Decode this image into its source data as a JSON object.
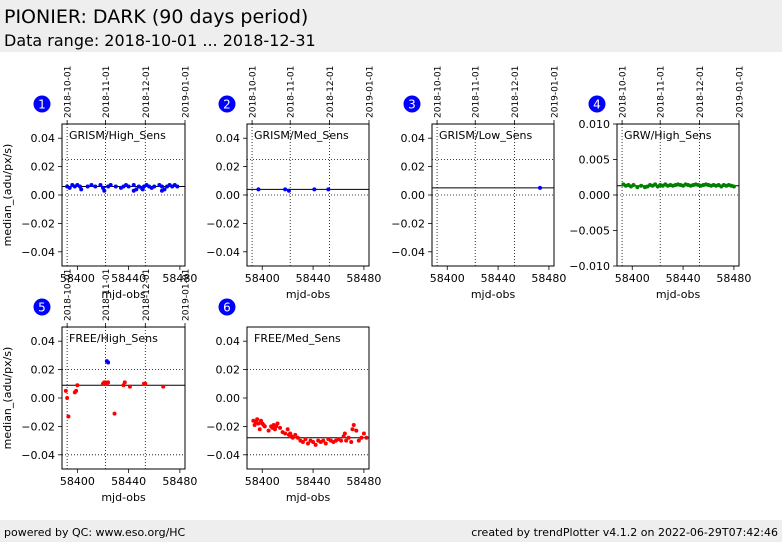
{
  "header": {
    "title": "PIONIER: DARK (90 days period)",
    "subtitle": "Data range: 2018-10-01 ... 2018-12-31"
  },
  "footer": {
    "left": "powered by QC: www.eso.org/HC",
    "right": "created by trendPlotter v4.1.2 on 2022-06-29T07:42:46"
  },
  "colors": {
    "blue": "#0000ff",
    "green": "#007f00",
    "red": "#ff0000",
    "badge": "#0000ff"
  },
  "chart_data": [
    {
      "type": "scatter",
      "badge": "1",
      "label": "GRISM/High_Sens",
      "xlabel": "mjd-obs",
      "ylabel": "median_(adu/px/s)",
      "xlim": [
        58388,
        58484
      ],
      "ylim": [
        -0.05,
        0.05
      ],
      "xticks": [
        58400,
        58440,
        58480
      ],
      "xtick_labels": [
        "58400",
        "58440",
        "58480"
      ],
      "yticks": [
        -0.04,
        -0.02,
        0.0,
        0.02,
        0.04
      ],
      "ytick_labels": [
        "−0.04",
        "−0.02",
        "0.00",
        "0.02",
        "0.04"
      ],
      "date_ticks": [
        58392,
        58422,
        58453,
        58484
      ],
      "date_labels": [
        "2018-10-01",
        "2018-11-01",
        "2018-12-01",
        "2019-01-01"
      ],
      "hlines": [
        {
          "y": 0.006,
          "style": "solid"
        },
        {
          "y": 0.025,
          "style": "dotted"
        },
        {
          "y": 0.0,
          "style": "dotted"
        }
      ],
      "series": [
        {
          "color": "blue",
          "x": [
            58392,
            58394,
            58396,
            58398,
            58400,
            58402,
            58408,
            58411,
            58414,
            58418,
            58420,
            58421,
            58424,
            58426,
            58430,
            58434,
            58436,
            58438,
            58440,
            58444,
            58446,
            58448,
            58450,
            58452,
            58454,
            58456,
            58458,
            58460,
            58464,
            58466,
            58468,
            58470,
            58472,
            58474,
            58476,
            58478,
            58403,
            58444,
            58466,
            58451
          ],
          "y": [
            0.006,
            0.005,
            0.007,
            0.006,
            0.007,
            0.006,
            0.006,
            0.007,
            0.006,
            0.007,
            0.005,
            0.003,
            0.006,
            0.007,
            0.006,
            0.005,
            0.006,
            0.007,
            0.006,
            0.007,
            0.004,
            0.006,
            0.005,
            0.006,
            0.007,
            0.006,
            0.005,
            0.006,
            0.007,
            0.006,
            0.004,
            0.006,
            0.007,
            0.006,
            0.007,
            0.006,
            0.004,
            0.003,
            0.003,
            0.004
          ]
        }
      ]
    },
    {
      "type": "scatter",
      "badge": "2",
      "label": "GRISM/Med_Sens",
      "xlabel": "mjd-obs",
      "ylabel": "",
      "xlim": [
        58388,
        58484
      ],
      "ylim": [
        -0.05,
        0.05
      ],
      "xticks": [
        58400,
        58440,
        58480
      ],
      "xtick_labels": [
        "58400",
        "58440",
        "58480"
      ],
      "yticks": [
        -0.04,
        -0.02,
        0.0,
        0.02,
        0.04
      ],
      "ytick_labels": [
        "−0.04",
        "−0.02",
        "0.00",
        "0.02",
        "0.04"
      ],
      "date_ticks": [
        58392,
        58422,
        58453,
        58484
      ],
      "date_labels": [
        "2018-10-01",
        "2018-11-01",
        "2018-12-01",
        "2019-01-01"
      ],
      "hlines": [
        {
          "y": 0.004,
          "style": "solid"
        },
        {
          "y": 0.025,
          "style": "dotted"
        },
        {
          "y": 0.0,
          "style": "dotted"
        }
      ],
      "series": [
        {
          "color": "blue",
          "x": [
            58397,
            58418,
            58421,
            58441,
            58452
          ],
          "y": [
            0.004,
            0.004,
            0.003,
            0.004,
            0.004
          ]
        }
      ]
    },
    {
      "type": "scatter",
      "badge": "3",
      "label": "GRISM/Low_Sens",
      "xlabel": "mjd-obs",
      "ylabel": "",
      "xlim": [
        58388,
        58484
      ],
      "ylim": [
        -0.05,
        0.05
      ],
      "xticks": [
        58400,
        58440,
        58480
      ],
      "xtick_labels": [
        "58400",
        "58440",
        "58480"
      ],
      "yticks": [
        -0.04,
        -0.02,
        0.0,
        0.02,
        0.04
      ],
      "ytick_labels": [
        "−0.04",
        "−0.02",
        "0.00",
        "0.02",
        "0.04"
      ],
      "date_ticks": [
        58392,
        58422,
        58453,
        58484
      ],
      "date_labels": [
        "2018-10-01",
        "2018-11-01",
        "2018-12-01",
        "2019-01-01"
      ],
      "hlines": [
        {
          "y": 0.005,
          "style": "solid"
        },
        {
          "y": 0.025,
          "style": "dotted"
        },
        {
          "y": 0.0,
          "style": "dotted"
        }
      ],
      "series": [
        {
          "color": "blue",
          "x": [
            58473
          ],
          "y": [
            0.005
          ]
        }
      ]
    },
    {
      "type": "scatter",
      "badge": "4",
      "label": "GRW/High_Sens",
      "xlabel": "mjd-obs",
      "ylabel": "",
      "xlim": [
        58388,
        58484
      ],
      "ylim": [
        -0.01,
        0.01
      ],
      "xticks": [
        58400,
        58440,
        58480
      ],
      "xtick_labels": [
        "58400",
        "58440",
        "58480"
      ],
      "yticks": [
        -0.01,
        -0.005,
        0.0,
        0.005,
        0.01
      ],
      "ytick_labels": [
        "−0.010",
        "−0.005",
        "0.000",
        "0.005",
        "0.010"
      ],
      "date_ticks": [
        58392,
        58422,
        58453,
        58484
      ],
      "date_labels": [
        "2018-10-01",
        "2018-11-01",
        "2018-12-01",
        "2019-01-01"
      ],
      "hlines": [
        {
          "y": 0.0013,
          "style": "solid"
        },
        {
          "y": 0.0,
          "style": "dotted"
        }
      ],
      "series": [
        {
          "color": "green",
          "x": [
            58393,
            58395,
            58397,
            58399,
            58401,
            58404,
            58407,
            58410,
            58412,
            58414,
            58416,
            58418,
            58420,
            58422,
            58424,
            58426,
            58428,
            58430,
            58432,
            58434,
            58436,
            58438,
            58440,
            58442,
            58444,
            58446,
            58448,
            58450,
            58452,
            58454,
            58456,
            58458,
            58460,
            58462,
            58464,
            58466,
            58468,
            58470,
            58472,
            58474,
            58476,
            58478,
            58480
          ],
          "y": [
            0.0015,
            0.0013,
            0.0014,
            0.0012,
            0.0014,
            0.0011,
            0.0013,
            0.0011,
            0.0012,
            0.0014,
            0.0013,
            0.0015,
            0.0012,
            0.0014,
            0.0013,
            0.0015,
            0.0013,
            0.0014,
            0.0013,
            0.0014,
            0.0015,
            0.0014,
            0.0013,
            0.0015,
            0.0014,
            0.0013,
            0.0014,
            0.0015,
            0.0014,
            0.0013,
            0.0014,
            0.0015,
            0.0014,
            0.0013,
            0.0014,
            0.0013,
            0.0014,
            0.0012,
            0.0014,
            0.0013,
            0.0014,
            0.0013,
            0.0012
          ]
        }
      ]
    },
    {
      "type": "scatter",
      "badge": "5",
      "label": "FREE/High_Sens",
      "xlabel": "mjd-obs",
      "ylabel": "median_(adu/px/s)",
      "xlim": [
        58388,
        58484
      ],
      "ylim": [
        -0.05,
        0.05
      ],
      "xticks": [
        58400,
        58440,
        58480
      ],
      "xtick_labels": [
        "58400",
        "58440",
        "58480"
      ],
      "yticks": [
        -0.04,
        -0.02,
        0.0,
        0.02,
        0.04
      ],
      "ytick_labels": [
        "−0.04",
        "−0.02",
        "0.00",
        "0.02",
        "0.04"
      ],
      "date_ticks": [
        58392,
        58422,
        58453,
        58484
      ],
      "date_labels": [
        "2018-10-01",
        "2018-11-01",
        "2018-12-01",
        "2019-01-01"
      ],
      "hlines": [
        {
          "y": 0.009,
          "style": "solid"
        },
        {
          "y": 0.02,
          "style": "dotted"
        },
        {
          "y": -0.04,
          "style": "dotted"
        }
      ],
      "series": [
        {
          "color": "red",
          "x": [
            58391,
            58392,
            58393,
            58398,
            58399,
            58400,
            58420,
            58421,
            58422,
            58423,
            58424,
            58429,
            58436,
            58437,
            58441,
            58452,
            58453,
            58467
          ],
          "y": [
            0.005,
            0.0,
            -0.013,
            0.004,
            0.005,
            0.009,
            0.01,
            0.011,
            0.011,
            0.01,
            0.011,
            -0.011,
            0.009,
            0.011,
            0.008,
            0.01,
            0.01,
            0.008
          ]
        },
        {
          "color": "blue",
          "x": [
            58423,
            58424
          ],
          "y": [
            0.026,
            0.025
          ]
        }
      ]
    },
    {
      "type": "scatter",
      "badge": "6",
      "label": "FREE/Med_Sens",
      "xlabel": "mjd-obs",
      "ylabel": "",
      "xlim": [
        58388,
        58484
      ],
      "ylim": [
        -0.05,
        0.05
      ],
      "xticks": [
        58400,
        58440,
        58480
      ],
      "xtick_labels": [
        "58400",
        "58440",
        "58480"
      ],
      "yticks": [
        -0.04,
        -0.02,
        0.0,
        0.02,
        0.04
      ],
      "ytick_labels": [
        "−0.04",
        "−0.02",
        "0.00",
        "0.02",
        "0.04"
      ],
      "date_ticks": [],
      "date_labels": [],
      "hlines": [
        {
          "y": -0.028,
          "style": "solid"
        },
        {
          "y": 0.02,
          "style": "dotted"
        },
        {
          "y": -0.04,
          "style": "dotted"
        }
      ],
      "series": [
        {
          "color": "red",
          "x": [
            58393,
            58394,
            58395,
            58396,
            58397,
            58398,
            58399,
            58400,
            58401,
            58402,
            58405,
            58407,
            58408,
            58409,
            58410,
            58411,
            58412,
            58414,
            58416,
            58418,
            58420,
            58421,
            58422,
            58423,
            58424,
            58426,
            58428,
            58430,
            58432,
            58434,
            58436,
            58438,
            58440,
            58442,
            58444,
            58446,
            58448,
            58450,
            58452,
            58454,
            58456,
            58458,
            58460,
            58462,
            58464,
            58465,
            58466,
            58468,
            58470,
            58471,
            58472,
            58474,
            58476,
            58478,
            58480,
            58482
          ],
          "y": [
            -0.016,
            -0.019,
            -0.017,
            -0.015,
            -0.018,
            -0.022,
            -0.016,
            -0.018,
            -0.019,
            -0.02,
            -0.023,
            -0.02,
            -0.021,
            -0.019,
            -0.022,
            -0.02,
            -0.018,
            -0.021,
            -0.024,
            -0.025,
            -0.022,
            -0.026,
            -0.025,
            -0.027,
            -0.028,
            -0.026,
            -0.028,
            -0.03,
            -0.031,
            -0.029,
            -0.032,
            -0.03,
            -0.031,
            -0.033,
            -0.03,
            -0.031,
            -0.03,
            -0.032,
            -0.029,
            -0.03,
            -0.031,
            -0.03,
            -0.029,
            -0.03,
            -0.027,
            -0.025,
            -0.03,
            -0.028,
            -0.031,
            -0.022,
            -0.019,
            -0.023,
            -0.03,
            -0.028,
            -0.025,
            -0.028
          ]
        }
      ]
    }
  ]
}
